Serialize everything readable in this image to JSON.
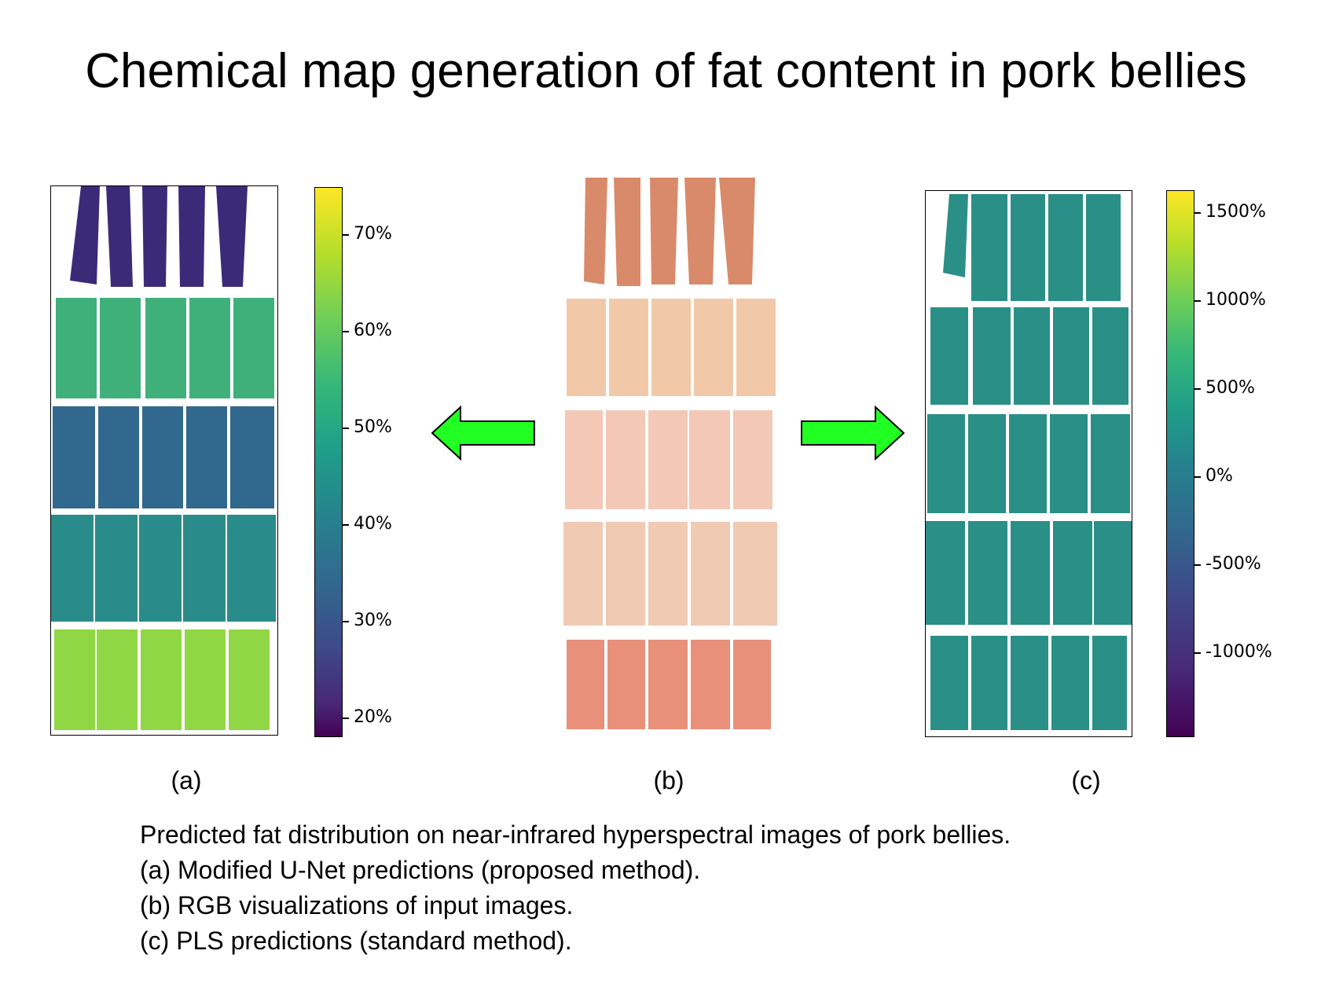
{
  "title": "Chemical map generation of fat content in pork bellies",
  "panels": [
    {
      "label": "(a)",
      "colorbar_ticks": [
        "70%",
        "60%",
        "50%",
        "40%",
        "30%",
        "20%"
      ]
    },
    {
      "label": "(b)"
    },
    {
      "label": "(c)",
      "colorbar_ticks": [
        "1500%",
        "1000%",
        "500%",
        "0%",
        "-500%",
        "-1000%"
      ]
    }
  ],
  "caption": [
    "Predicted fat distribution on near-infrared hyperspectral images of pork bellies.",
    "(a) Modified U-Net predictions (proposed method).",
    "(b) RGB visualizations of input images.",
    "(c) PLS predictions (standard method)."
  ],
  "colors": {
    "arrow_fill": "#22ff22",
    "viridis_top": "#fde725",
    "viridis_mid": "#21918c",
    "viridis_bottom": "#440154"
  }
}
